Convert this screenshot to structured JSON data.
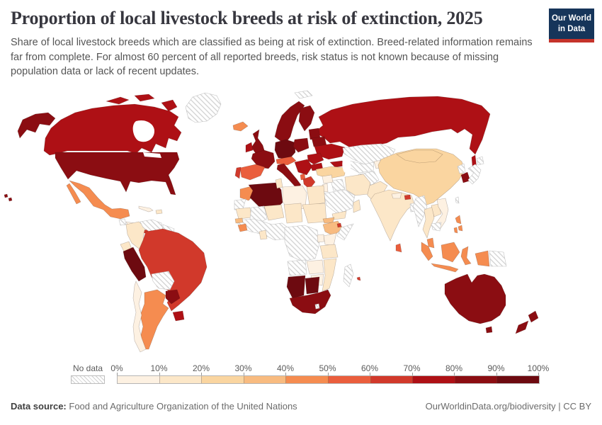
{
  "header": {
    "title": "Proportion of local livestock breeds at risk of extinction, 2025",
    "subtitle": "Share of local livestock breeds which are classified as being at risk of extinction. Breed-related information remains far from complete. For almost 60 percent of all reported breeds, risk status is not known because of missing population data or lack of recent updates."
  },
  "logo": {
    "line1": "Our World",
    "line2": "in Data",
    "bg_color": "#16355A",
    "accent_color": "#C5332A"
  },
  "legend": {
    "no_data_label": "No data",
    "tick_labels": [
      "0%",
      "10%",
      "20%",
      "30%",
      "40%",
      "50%",
      "60%",
      "70%",
      "80%",
      "90%",
      "100%"
    ],
    "colors": [
      "#FDF1E2",
      "#FCE7C8",
      "#FAD5A0",
      "#F8BB80",
      "#F58C50",
      "#EA5E3D",
      "#D1392B",
      "#AE1015",
      "#8B0D12",
      "#6D0A10"
    ]
  },
  "chart_data": {
    "type": "choropleth-map",
    "title": "Proportion of local livestock breeds at risk of extinction, 2025",
    "year": "2025",
    "unit": "% of local livestock breeds at risk of extinction",
    "no_data_pattern": "diagonal-hatch",
    "band_colors": {
      "0-10%": "#FDF1E2",
      "10-20%": "#FCE7C8",
      "20-30%": "#FAD5A0",
      "30-40%": "#F8BB80",
      "40-50%": "#F58C50",
      "50-60%": "#EA5E3D",
      "60-70%": "#D1392B",
      "70-80%": "#AE1015",
      "80-90%": "#8B0D12",
      "90-100%": "#6D0A10"
    },
    "regions": [
      {
        "name": "russia",
        "band": "70-80%"
      },
      {
        "name": "svalbard",
        "band": "No data"
      },
      {
        "name": "scandinavia",
        "band": "80-90%"
      },
      {
        "name": "finland",
        "band": "80-90%"
      },
      {
        "name": "denmark",
        "band": "80-90%"
      },
      {
        "name": "baltics",
        "band": "80-90%"
      },
      {
        "name": "belarus",
        "band": "80-90%"
      },
      {
        "name": "ukraine",
        "band": "70-80%"
      },
      {
        "name": "united-kingdom",
        "band": "80-90%"
      },
      {
        "name": "ireland",
        "band": "70-80%"
      },
      {
        "name": "iceland",
        "band": "40-50%"
      },
      {
        "name": "france",
        "band": "80-90%"
      },
      {
        "name": "spain",
        "band": "50-60%"
      },
      {
        "name": "portugal",
        "band": "60-70%"
      },
      {
        "name": "germany-czech",
        "band": "90-100%"
      },
      {
        "name": "poland",
        "band": "80-90%"
      },
      {
        "name": "switzerland-austria",
        "band": "50-60%"
      },
      {
        "name": "italy",
        "band": "80-90%"
      },
      {
        "name": "balkans",
        "band": "70-80%"
      },
      {
        "name": "albania",
        "band": "50-60%"
      },
      {
        "name": "romania",
        "band": "70-80%"
      },
      {
        "name": "bulgaria",
        "band": "70-80%"
      },
      {
        "name": "greece",
        "band": "60-70%"
      },
      {
        "name": "caucasus",
        "band": "70-80%"
      },
      {
        "name": "turkey",
        "band": "20-30%"
      },
      {
        "name": "kazakhstan",
        "band": "No data"
      },
      {
        "name": "uzbekistan-turkmenistan",
        "band": "No data"
      },
      {
        "name": "kyrgyzstan-tajikistan",
        "band": "0-10%"
      },
      {
        "name": "afghanistan",
        "band": "No data"
      },
      {
        "name": "pakistan",
        "band": "10-20%"
      },
      {
        "name": "iran",
        "band": "10-20%"
      },
      {
        "name": "iraq",
        "band": "No data"
      },
      {
        "name": "syria",
        "band": "0-10%"
      },
      {
        "name": "jordan-israel",
        "band": "0-10%"
      },
      {
        "name": "saudi-arabia",
        "band": "No data"
      },
      {
        "name": "yemen",
        "band": "10-20%"
      },
      {
        "name": "oman",
        "band": "10-20%"
      },
      {
        "name": "china",
        "band": "20-30%"
      },
      {
        "name": "mongolia",
        "band": "20-30%"
      },
      {
        "name": "north-korea",
        "band": "No data"
      },
      {
        "name": "south-korea",
        "band": "80-90%"
      },
      {
        "name": "japan",
        "band": "No data"
      },
      {
        "name": "taiwan",
        "band": "No data"
      },
      {
        "name": "india",
        "band": "10-20%"
      },
      {
        "name": "nepal",
        "band": "0-10%"
      },
      {
        "name": "bhutan",
        "band": "60-70%"
      },
      {
        "name": "bangladesh",
        "band": "No data"
      },
      {
        "name": "sri-lanka",
        "band": "50-60%"
      },
      {
        "name": "myanmar",
        "band": "No data"
      },
      {
        "name": "thailand",
        "band": "10-20%"
      },
      {
        "name": "laos",
        "band": "10-20%"
      },
      {
        "name": "vietnam",
        "band": "0-10%"
      },
      {
        "name": "cambodia",
        "band": "No data"
      },
      {
        "name": "malaysia",
        "band": "40-50%"
      },
      {
        "name": "indonesia",
        "band": "40-50%"
      },
      {
        "name": "papua-new-guinea",
        "band": "No data"
      },
      {
        "name": "philippines",
        "band": "40-50%"
      },
      {
        "name": "australia",
        "band": "80-90%"
      },
      {
        "name": "new-zealand",
        "band": "80-90%"
      },
      {
        "name": "morocco",
        "band": "40-50%"
      },
      {
        "name": "western-sahara",
        "band": "No data"
      },
      {
        "name": "algeria",
        "band": "90-100%"
      },
      {
        "name": "tunisia",
        "band": "10-20%"
      },
      {
        "name": "libya",
        "band": "0-10%"
      },
      {
        "name": "egypt",
        "band": "10-20%"
      },
      {
        "name": "mauritania",
        "band": "10-20%"
      },
      {
        "name": "mali",
        "band": "No data"
      },
      {
        "name": "niger",
        "band": "10-20%"
      },
      {
        "name": "chad",
        "band": "10-20%"
      },
      {
        "name": "sudan",
        "band": "10-20%"
      },
      {
        "name": "west-africa",
        "band": "No data"
      },
      {
        "name": "senegal",
        "band": "30-40%"
      },
      {
        "name": "guinea",
        "band": "40-50%"
      },
      {
        "name": "ghana",
        "band": "10-20%"
      },
      {
        "name": "ethiopia",
        "band": "30-40%"
      },
      {
        "name": "eritrea",
        "band": "30-40%"
      },
      {
        "name": "djibouti",
        "band": "60-70%"
      },
      {
        "name": "somalia",
        "band": "No data"
      },
      {
        "name": "kenya",
        "band": "0-10%"
      },
      {
        "name": "uganda",
        "band": "0-10%"
      },
      {
        "name": "tanzania",
        "band": "10-20%"
      },
      {
        "name": "central-africa",
        "band": "No data"
      },
      {
        "name": "angola",
        "band": "No data"
      },
      {
        "name": "zambia",
        "band": "0-10%"
      },
      {
        "name": "mozambique",
        "band": "10-20%"
      },
      {
        "name": "zimbabwe",
        "band": "0-10%"
      },
      {
        "name": "namibia",
        "band": "90-100%"
      },
      {
        "name": "botswana",
        "band": "90-100%"
      },
      {
        "name": "south-africa",
        "band": "80-90%"
      },
      {
        "name": "lesotho",
        "band": "No data"
      },
      {
        "name": "madagascar",
        "band": "No data"
      },
      {
        "name": "mauritius",
        "band": "60-70%"
      },
      {
        "name": "canada",
        "band": "70-80%"
      },
      {
        "name": "greenland",
        "band": "No data"
      },
      {
        "name": "united-states",
        "band": "80-90%"
      },
      {
        "name": "mexico",
        "band": "40-50%"
      },
      {
        "name": "guatemala",
        "band": "No data"
      },
      {
        "name": "honduras-nicaragua",
        "band": "0-10%"
      },
      {
        "name": "costa-rica-panama",
        "band": "60-70%"
      },
      {
        "name": "cuba",
        "band": "0-10%"
      },
      {
        "name": "hispaniola",
        "band": "10-20%"
      },
      {
        "name": "colombia",
        "band": "10-20%"
      },
      {
        "name": "venezuela",
        "band": "No data"
      },
      {
        "name": "guyanas",
        "band": "No data"
      },
      {
        "name": "ecuador",
        "band": "10-20%"
      },
      {
        "name": "peru",
        "band": "90-100%"
      },
      {
        "name": "brazil",
        "band": "60-70%"
      },
      {
        "name": "bolivia",
        "band": "No data"
      },
      {
        "name": "paraguay",
        "band": "80-90%"
      },
      {
        "name": "uruguay",
        "band": "70-80%"
      },
      {
        "name": "argentina",
        "band": "40-50%"
      },
      {
        "name": "chile",
        "band": "0-10%"
      }
    ]
  },
  "footer": {
    "source_label": "Data source:",
    "source_text": "Food and Agriculture Organization of the United Nations",
    "right_text": "OurWorldinData.org/biodiversity | CC BY"
  }
}
